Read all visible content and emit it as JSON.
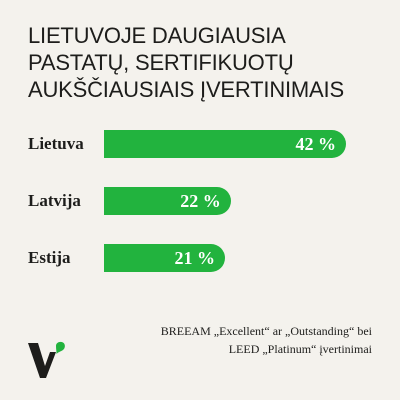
{
  "title_lines": [
    "LIETUVOJE DAUGIAUSIA",
    "PASTATŲ, SERTIFIKUOTŲ",
    "AUKŠČIAUSIAIS ĮVERTINIMAIS"
  ],
  "chart_data": {
    "type": "bar",
    "orientation": "horizontal",
    "categories": [
      "Lietuva",
      "Latvija",
      "Estija"
    ],
    "values": [
      42,
      22,
      21
    ],
    "value_labels": [
      "42 %",
      "22 %",
      "21 %"
    ],
    "unit": "%",
    "xlim": [
      0,
      42
    ],
    "bar_color": "#22b33e"
  },
  "footnote": {
    "line1": "BREEAM „Excellent“ ar „Outstanding“ bei",
    "line2": "LEED „Platinum“ įvertinimai"
  },
  "colors": {
    "background": "#f4f2ed",
    "text": "#1d1d1b",
    "accent": "#22b33e"
  },
  "logo": {
    "icon": "brand-v-logo-icon"
  }
}
